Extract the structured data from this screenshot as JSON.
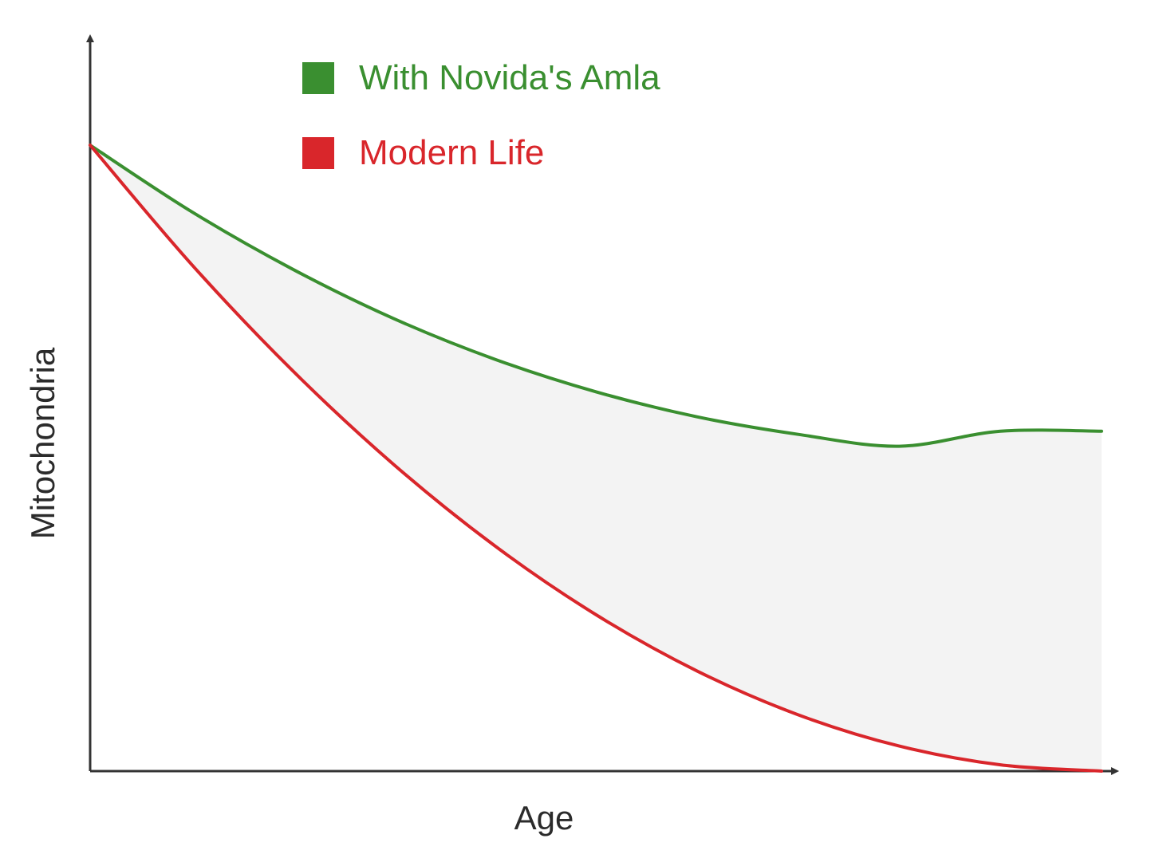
{
  "chart_data": {
    "type": "line",
    "xlabel": "Age",
    "ylabel": "Mitochondria",
    "xlim": [
      0,
      100
    ],
    "ylim": [
      0,
      100
    ],
    "grid": false,
    "legend_position": "top-left",
    "shaded_region_between_series": true,
    "colors": {
      "axis": "#333333",
      "shade": "#f3f3f3"
    },
    "series": [
      {
        "name": "With Novida's Amla",
        "color": "#3a8f30",
        "x": [
          0,
          10,
          20,
          30,
          40,
          50,
          60,
          70,
          80,
          90,
          100
        ],
        "y": [
          100,
          89.4,
          80.2,
          72.3,
          65.8,
          60.6,
          56.6,
          53.8,
          51.9,
          54.3,
          54.3
        ]
      },
      {
        "name": "Modern Life",
        "color": "#d9262b",
        "x": [
          0,
          10,
          20,
          30,
          40,
          50,
          60,
          70,
          80,
          90,
          100
        ],
        "y": [
          100,
          81,
          64,
          49,
          36,
          25,
          16,
          9,
          4,
          1,
          0
        ]
      }
    ]
  }
}
